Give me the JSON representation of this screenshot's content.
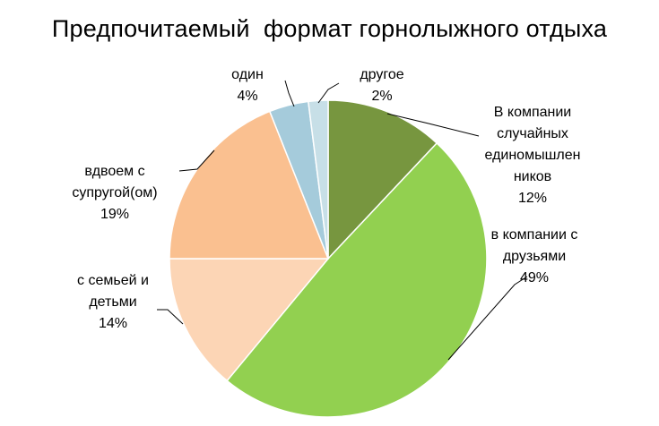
{
  "chart_data": {
    "type": "pie",
    "title": "Предпочитаемый  формат горнолыжного отдыха",
    "start_angle_deg": 0,
    "direction": "clockwise",
    "slices": [
      {
        "label_lines": [
          "В компании",
          "случайных",
          "единомышлен",
          "ников"
        ],
        "value": 12,
        "value_label": "12%",
        "color": "#77963f"
      },
      {
        "label_lines": [
          "в компании с",
          "друзьями"
        ],
        "value": 49,
        "value_label": "49%",
        "color": "#92d050"
      },
      {
        "label_lines": [
          "с семьей и",
          "детьми"
        ],
        "value": 14,
        "value_label": "14%",
        "color": "#fcd5b5"
      },
      {
        "label_lines": [
          "вдвоем с",
          "супругой(ом)"
        ],
        "value": 19,
        "value_label": "19%",
        "color": "#fac090"
      },
      {
        "label_lines": [
          "один"
        ],
        "value": 4,
        "value_label": "4%",
        "color": "#a5cbdb"
      },
      {
        "label_lines": [
          "другое"
        ],
        "value": 2,
        "value_label": "2%",
        "color": "#c7dfe7"
      }
    ]
  }
}
